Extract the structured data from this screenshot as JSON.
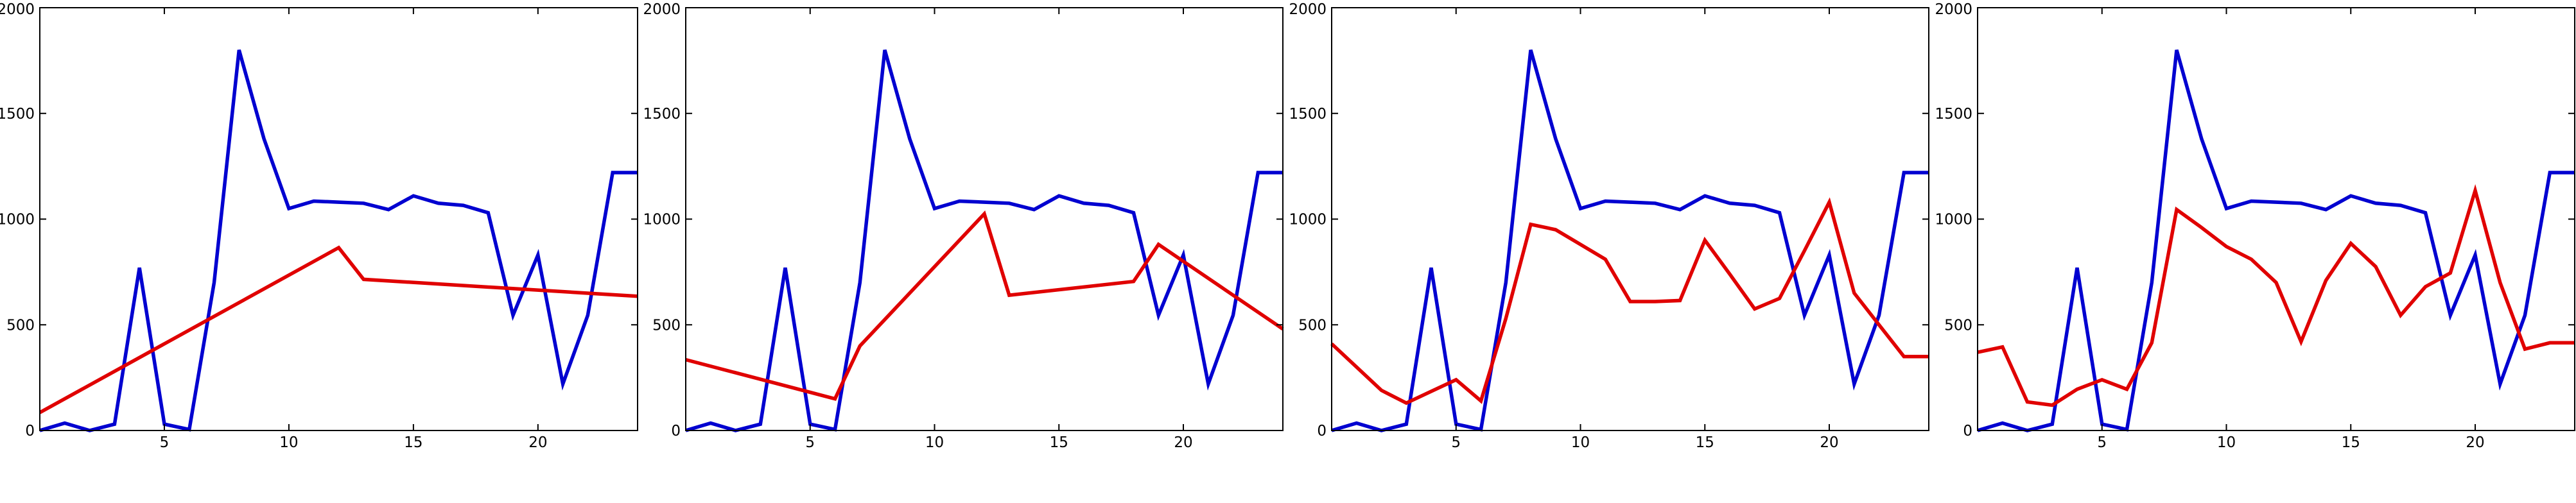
{
  "chart_data": [
    {
      "type": "line",
      "xlim": [
        0,
        24
      ],
      "ylim": [
        0,
        2000
      ],
      "xticks": [
        5,
        10,
        15,
        20
      ],
      "yticks": [
        0,
        500,
        1000,
        1500,
        2000
      ],
      "grid": false,
      "series": [
        {
          "color": "#0000d0",
          "x": [
            0,
            1,
            2,
            3,
            4,
            5,
            6,
            7,
            8,
            9,
            10,
            11,
            12,
            13,
            14,
            15,
            16,
            17,
            18,
            19,
            20,
            21,
            22,
            23,
            24
          ],
          "y": [
            0,
            35,
            0,
            30,
            770,
            30,
            5,
            700,
            1800,
            1380,
            1050,
            1085,
            1080,
            1075,
            1045,
            1110,
            1075,
            1065,
            1030,
            545,
            830,
            220,
            545,
            1220,
            1220
          ]
        },
        {
          "color": "#e00000",
          "x": [
            0,
            12,
            13,
            24
          ],
          "y": [
            85,
            865,
            715,
            635
          ]
        }
      ]
    },
    {
      "type": "line",
      "xlim": [
        0,
        24
      ],
      "ylim": [
        0,
        2000
      ],
      "xticks": [
        5,
        10,
        15,
        20
      ],
      "yticks": [
        0,
        500,
        1000,
        1500,
        2000
      ],
      "grid": false,
      "series": [
        {
          "color": "#0000d0",
          "x": [
            0,
            1,
            2,
            3,
            4,
            5,
            6,
            7,
            8,
            9,
            10,
            11,
            12,
            13,
            14,
            15,
            16,
            17,
            18,
            19,
            20,
            21,
            22,
            23,
            24
          ],
          "y": [
            0,
            35,
            0,
            30,
            770,
            30,
            5,
            700,
            1800,
            1380,
            1050,
            1085,
            1080,
            1075,
            1045,
            1110,
            1075,
            1065,
            1030,
            545,
            830,
            220,
            545,
            1220,
            1220
          ]
        },
        {
          "color": "#e00000",
          "x": [
            0,
            6,
            7,
            12,
            13,
            18,
            19,
            24
          ],
          "y": [
            335,
            150,
            400,
            1025,
            640,
            705,
            880,
            480
          ]
        }
      ]
    },
    {
      "type": "line",
      "xlim": [
        0,
        24
      ],
      "ylim": [
        0,
        2000
      ],
      "xticks": [
        5,
        10,
        15,
        20
      ],
      "yticks": [
        0,
        500,
        1000,
        1500,
        2000
      ],
      "grid": false,
      "series": [
        {
          "color": "#0000d0",
          "x": [
            0,
            1,
            2,
            3,
            4,
            5,
            6,
            7,
            8,
            9,
            10,
            11,
            12,
            13,
            14,
            15,
            16,
            17,
            18,
            19,
            20,
            21,
            22,
            23,
            24
          ],
          "y": [
            0,
            35,
            0,
            30,
            770,
            30,
            5,
            700,
            1800,
            1380,
            1050,
            1085,
            1080,
            1075,
            1045,
            1110,
            1075,
            1065,
            1030,
            545,
            830,
            220,
            545,
            1220,
            1220
          ]
        },
        {
          "color": "#e00000",
          "x": [
            0,
            1,
            2,
            3,
            4,
            5,
            6,
            7,
            8,
            9,
            10,
            11,
            12,
            13,
            14,
            15,
            16,
            17,
            18,
            19,
            20,
            21,
            22,
            23,
            24
          ],
          "y": [
            410,
            300,
            190,
            130,
            185,
            240,
            140,
            530,
            975,
            950,
            880,
            810,
            610,
            610,
            615,
            900,
            740,
            575,
            625,
            850,
            1080,
            650,
            500,
            350,
            350
          ]
        }
      ]
    },
    {
      "type": "line",
      "xlim": [
        0,
        24
      ],
      "ylim": [
        0,
        2000
      ],
      "xticks": [
        5,
        10,
        15,
        20
      ],
      "yticks": [
        0,
        500,
        1000,
        1500,
        2000
      ],
      "grid": false,
      "series": [
        {
          "color": "#0000d0",
          "x": [
            0,
            1,
            2,
            3,
            4,
            5,
            6,
            7,
            8,
            9,
            10,
            11,
            12,
            13,
            14,
            15,
            16,
            17,
            18,
            19,
            20,
            21,
            22,
            23,
            24
          ],
          "y": [
            0,
            35,
            0,
            30,
            770,
            30,
            5,
            700,
            1800,
            1380,
            1050,
            1085,
            1080,
            1075,
            1045,
            1110,
            1075,
            1065,
            1030,
            545,
            830,
            220,
            545,
            1220,
            1220
          ]
        },
        {
          "color": "#e00000",
          "x": [
            0,
            1,
            2,
            3,
            4,
            5,
            6,
            7,
            8,
            9,
            10,
            11,
            12,
            13,
            14,
            15,
            16,
            17,
            18,
            19,
            20,
            21,
            22,
            23,
            24
          ],
          "y": [
            370,
            395,
            135,
            120,
            195,
            240,
            195,
            415,
            1045,
            960,
            870,
            810,
            700,
            420,
            710,
            885,
            775,
            545,
            680,
            745,
            1135,
            700,
            385,
            415,
            415
          ]
        }
      ]
    }
  ]
}
